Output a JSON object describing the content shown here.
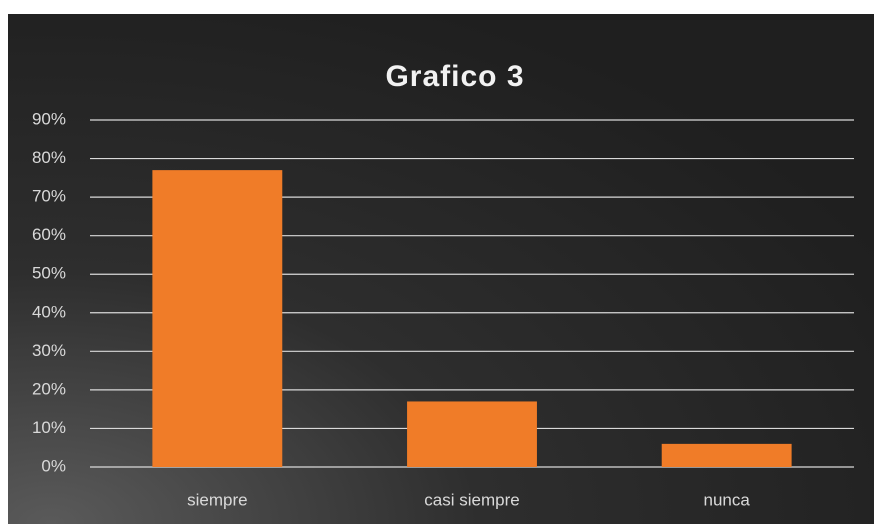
{
  "chart_data": {
    "type": "bar",
    "title": "Grafico 3",
    "categories": [
      "siempre",
      "casi siempre",
      "nunca"
    ],
    "values": [
      77,
      17,
      6
    ],
    "color": "#f07c28",
    "ylim": [
      0,
      90
    ],
    "yticks": [
      {
        "value": 0,
        "label": "0%"
      },
      {
        "value": 10,
        "label": "10%"
      },
      {
        "value": 20,
        "label": "20%"
      },
      {
        "value": 30,
        "label": "30%"
      },
      {
        "value": 40,
        "label": "40%"
      },
      {
        "value": 50,
        "label": "50%"
      },
      {
        "value": 60,
        "label": "60%"
      },
      {
        "value": 70,
        "label": "70%"
      },
      {
        "value": 80,
        "label": "80%"
      },
      {
        "value": 90,
        "label": "90%"
      }
    ],
    "grid": true
  }
}
